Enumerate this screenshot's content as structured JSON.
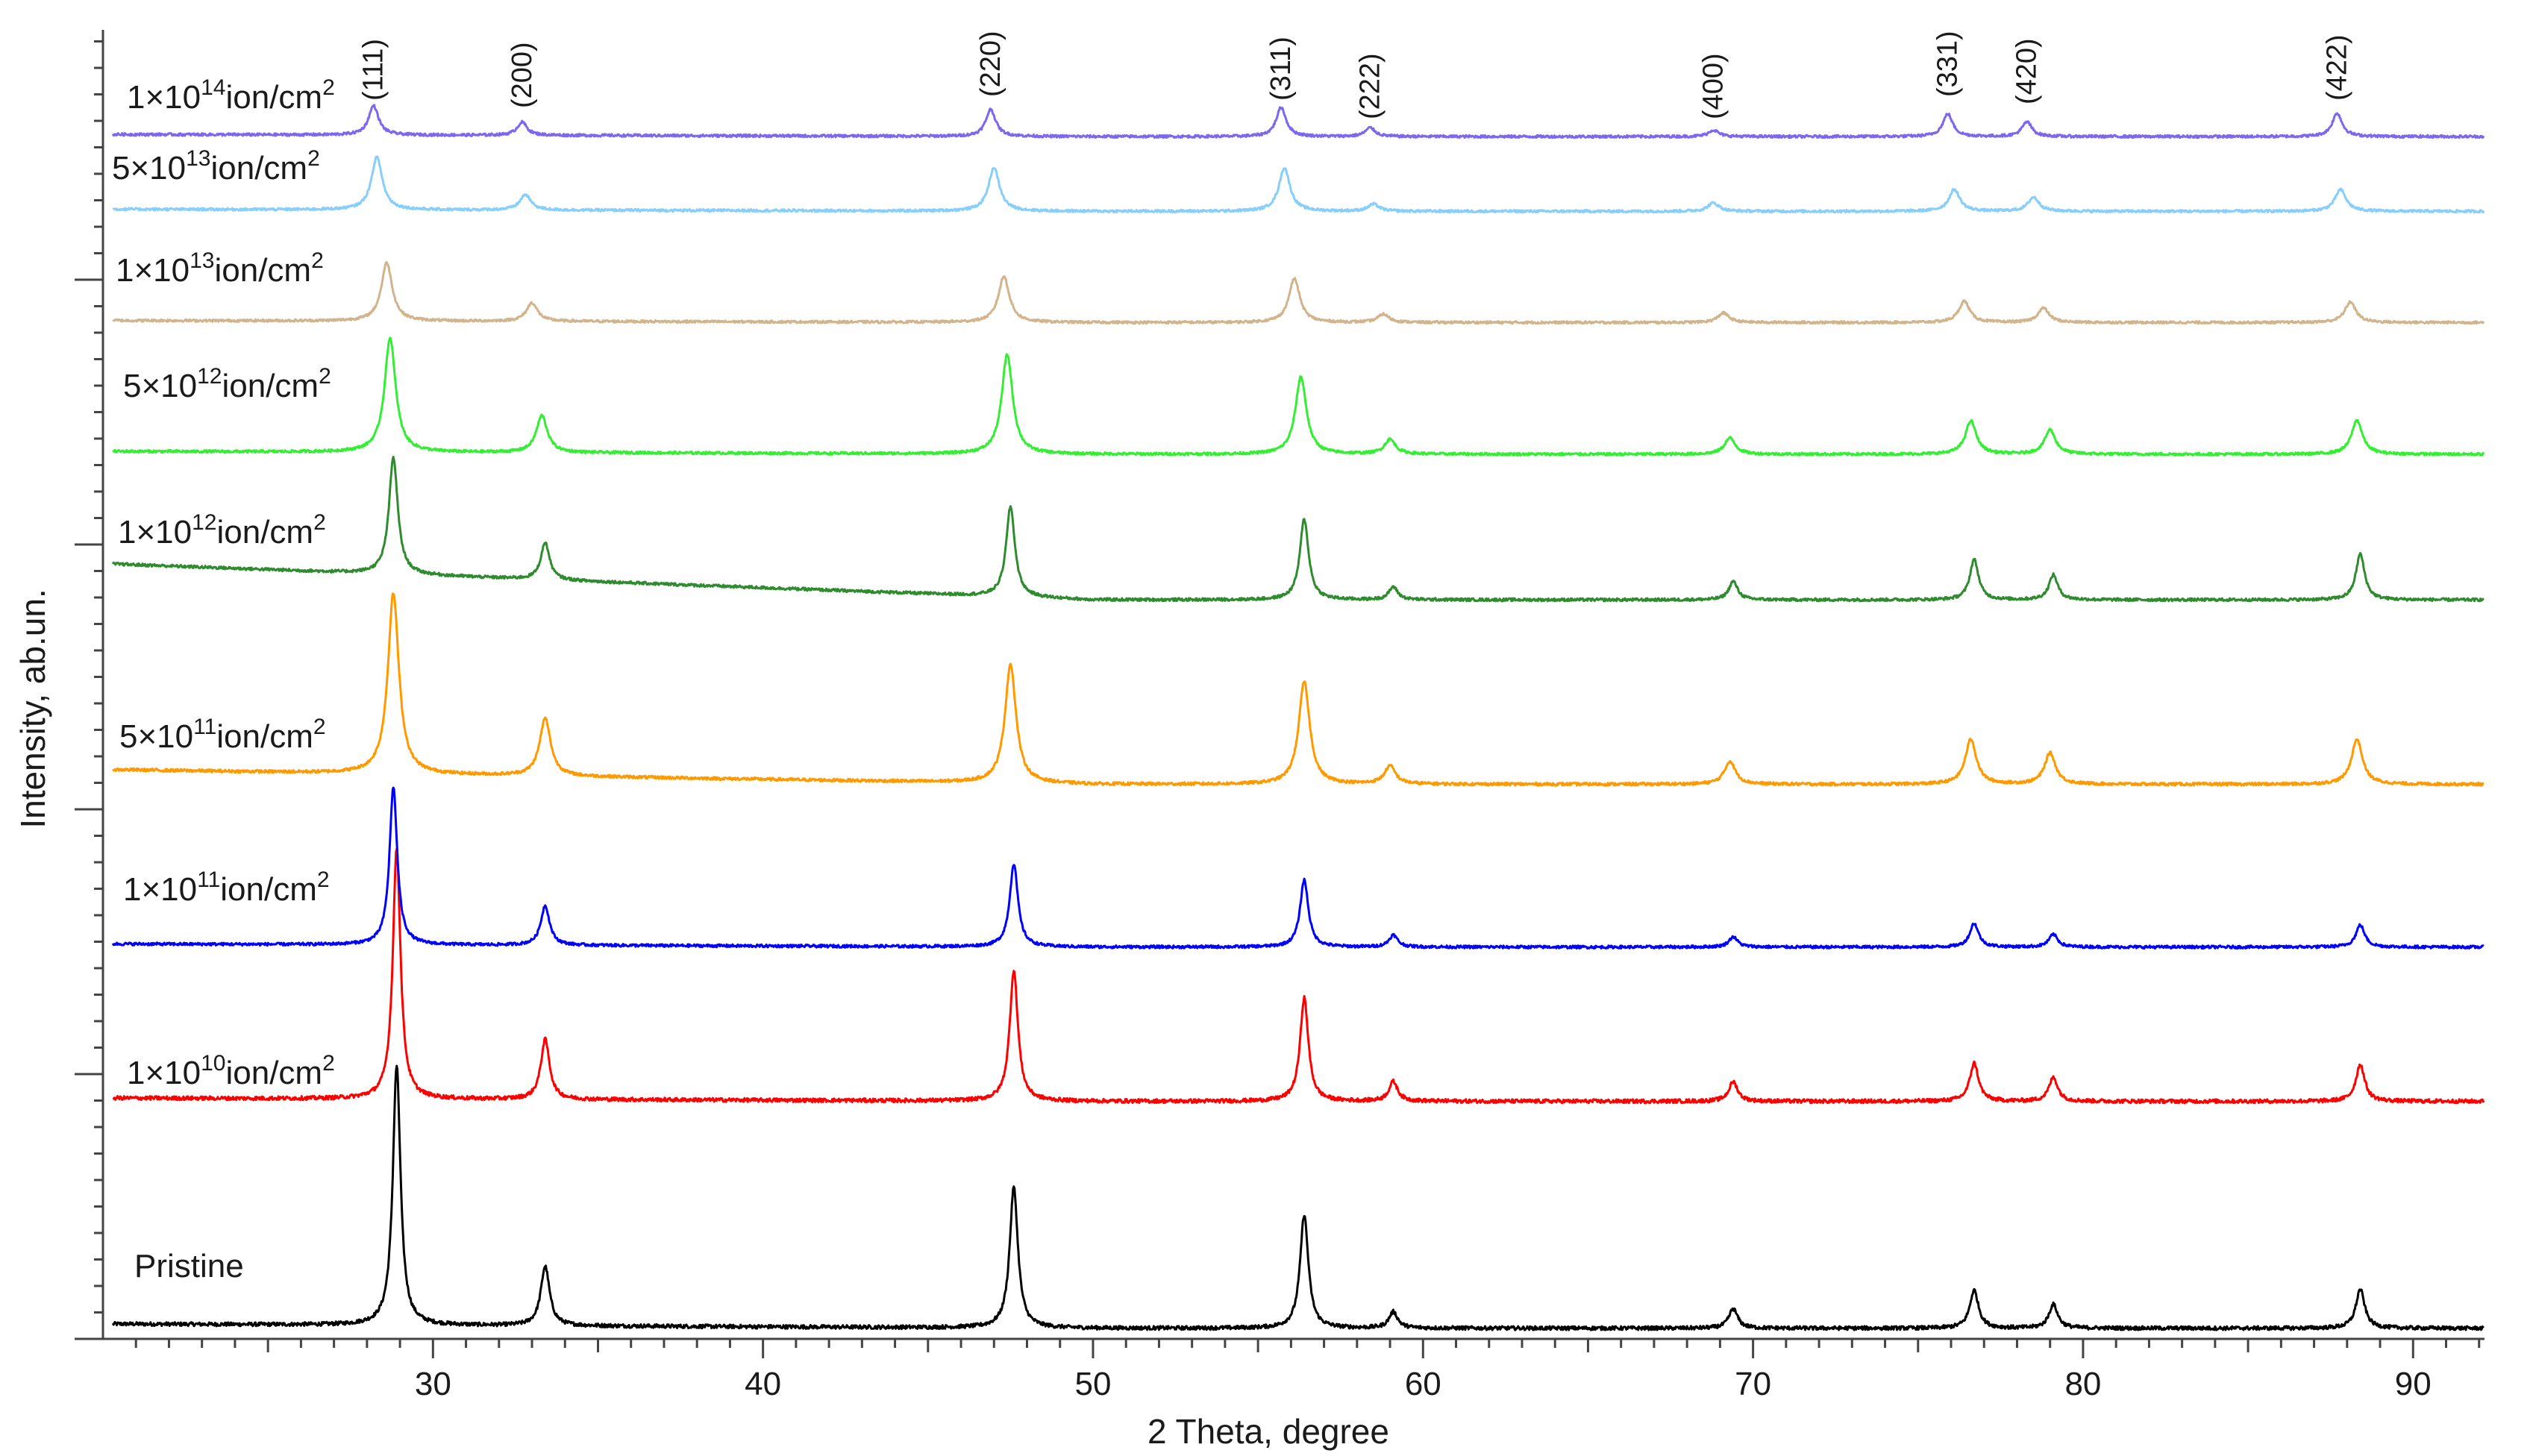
{
  "chart_data": {
    "type": "line",
    "xlabel": "2 Theta, degree",
    "ylabel": "Intensity, ab.un.",
    "xlim": [
      20,
      92.3
    ],
    "x_ticks": [
      30,
      40,
      50,
      60,
      70,
      80,
      90
    ],
    "layout": "stacked",
    "grid": false,
    "peak_labels": [
      {
        "text": "(111)",
        "x": 28.2
      },
      {
        "text": "(200)",
        "x": 32.7
      },
      {
        "text": "(220)",
        "x": 46.9
      },
      {
        "text": "(311)",
        "x": 55.7
      },
      {
        "text": "(222)",
        "x": 58.4
      },
      {
        "text": "(400)",
        "x": 68.8
      },
      {
        "text": "(331)",
        "x": 75.9
      },
      {
        "text": "(420)",
        "x": 78.3
      },
      {
        "text": "(422)",
        "x": 87.7
      }
    ],
    "series": [
      {
        "name": "Pristine",
        "color": "#000000",
        "shift": 0.0,
        "base": 0.5,
        "baseline_slope": 0.4,
        "peaks": [
          [
            28.9,
            24,
            0.14
          ],
          [
            33.4,
            5.5,
            0.16
          ],
          [
            47.6,
            13,
            0.15
          ],
          [
            56.4,
            10.5,
            0.15
          ],
          [
            59.1,
            1.5,
            0.16
          ],
          [
            69.4,
            1.8,
            0.16
          ],
          [
            76.7,
            3.5,
            0.16
          ],
          [
            79.1,
            2.2,
            0.16
          ],
          [
            88.4,
            3.6,
            0.16
          ]
        ]
      },
      {
        "name": "1×10¹⁰ion/cm²",
        "color": "#ff0000",
        "shift": 0.0,
        "base": 2.5,
        "baseline_slope": 0.3,
        "peaks": [
          [
            28.9,
            23,
            0.14
          ],
          [
            33.4,
            5.5,
            0.16
          ],
          [
            47.6,
            12,
            0.15
          ],
          [
            56.4,
            9.5,
            0.15
          ],
          [
            59.1,
            1.8,
            0.16
          ],
          [
            69.4,
            1.8,
            0.16
          ],
          [
            76.7,
            3.5,
            0.16
          ],
          [
            79.1,
            2.2,
            0.16
          ],
          [
            88.4,
            3.4,
            0.16
          ]
        ]
      },
      {
        "name": "1×10¹¹ion/cm²",
        "color": "#0000ff",
        "shift": 0.0,
        "base": 0.5,
        "baseline_slope": 0.4,
        "peaks": [
          [
            28.8,
            20,
            0.14
          ],
          [
            33.4,
            5,
            0.16
          ],
          [
            47.6,
            10.5,
            0.15
          ],
          [
            56.4,
            8.5,
            0.15
          ],
          [
            59.1,
            1.5,
            0.16
          ],
          [
            69.4,
            1.3,
            0.16
          ],
          [
            76.7,
            3,
            0.16
          ],
          [
            79.1,
            1.6,
            0.16
          ],
          [
            88.4,
            2.8,
            0.16
          ]
        ]
      },
      {
        "name": "5×10¹¹ion/cm²",
        "color": "#ff9900",
        "shift": 0.0,
        "base": 1.5,
        "baseline_slope": 1.8,
        "peaks": [
          [
            28.8,
            22,
            0.2
          ],
          [
            33.4,
            7,
            0.2
          ],
          [
            47.5,
            14.5,
            0.2
          ],
          [
            56.4,
            12.5,
            0.2
          ],
          [
            59.0,
            2.2,
            0.2
          ],
          [
            69.3,
            2.8,
            0.2
          ],
          [
            76.6,
            5.5,
            0.2
          ],
          [
            79.0,
            3.8,
            0.2
          ],
          [
            88.3,
            5.5,
            0.2
          ]
        ]
      },
      {
        "name": "1×10¹²ion/cm²",
        "color": "#2e8b2e",
        "shift": 0.0,
        "base": 1.0,
        "baseline_slope": 4.5,
        "peaks": [
          [
            28.8,
            14.5,
            0.16
          ],
          [
            33.4,
            4.6,
            0.16
          ],
          [
            47.5,
            11.2,
            0.16
          ],
          [
            56.4,
            10,
            0.16
          ],
          [
            59.1,
            1.6,
            0.16
          ],
          [
            69.4,
            2.3,
            0.16
          ],
          [
            76.7,
            5,
            0.16
          ],
          [
            79.1,
            3.1,
            0.16
          ],
          [
            88.4,
            5.7,
            0.16
          ]
        ]
      },
      {
        "name": "5×10¹²ion/cm²",
        "color": "#33ee33",
        "shift": 0.0,
        "base": 0.5,
        "baseline_slope": 0.4,
        "peaks": [
          [
            28.7,
            15.5,
            0.2
          ],
          [
            33.3,
            5,
            0.2
          ],
          [
            47.4,
            13.5,
            0.2
          ],
          [
            56.3,
            10.5,
            0.2
          ],
          [
            59.0,
            2,
            0.2
          ],
          [
            69.3,
            2.2,
            0.2
          ],
          [
            76.6,
            4.5,
            0.2
          ],
          [
            79.0,
            3.3,
            0.2
          ],
          [
            88.3,
            4.6,
            0.2
          ]
        ]
      },
      {
        "name": "1×10¹³ion/cm²",
        "color": "#d2b48c",
        "shift": 0.0,
        "base": 0.5,
        "baseline_slope": 0.3,
        "peaks": [
          [
            28.6,
            8.5,
            0.2
          ],
          [
            33.0,
            2.7,
            0.2
          ],
          [
            47.3,
            6.7,
            0.2
          ],
          [
            56.1,
            6.4,
            0.2
          ],
          [
            58.8,
            1.2,
            0.2
          ],
          [
            69.1,
            1.4,
            0.2
          ],
          [
            76.4,
            3.1,
            0.2
          ],
          [
            78.8,
            2.1,
            0.2
          ],
          [
            88.1,
            3,
            0.2
          ]
        ]
      },
      {
        "name": "5×10¹³ion/cm²",
        "color": "#87cefa",
        "shift": 0.0,
        "base": 0.5,
        "baseline_slope": 0.3,
        "peaks": [
          [
            28.3,
            7.5,
            0.2
          ],
          [
            32.8,
            2.2,
            0.2
          ],
          [
            47.0,
            6.2,
            0.2
          ],
          [
            55.8,
            6.2,
            0.2
          ],
          [
            58.5,
            1.0,
            0.2
          ],
          [
            68.8,
            1.2,
            0.2
          ],
          [
            76.1,
            3.1,
            0.2
          ],
          [
            78.5,
            2.0,
            0.2
          ],
          [
            87.8,
            3.1,
            0.2
          ]
        ]
      },
      {
        "name": "1×10¹⁴ion/cm²",
        "color": "#7b68ee",
        "shift": 0.0,
        "base": 0.5,
        "baseline_slope": 0.3,
        "peaks": [
          [
            28.2,
            4,
            0.18
          ],
          [
            32.7,
            1.8,
            0.18
          ],
          [
            46.9,
            3.7,
            0.18
          ],
          [
            55.7,
            4,
            0.18
          ],
          [
            58.4,
            1.2,
            0.18
          ],
          [
            68.8,
            0.9,
            0.18
          ],
          [
            75.9,
            3.1,
            0.18
          ],
          [
            78.3,
            2.0,
            0.18
          ],
          [
            87.7,
            3.2,
            0.18
          ]
        ]
      }
    ]
  }
}
